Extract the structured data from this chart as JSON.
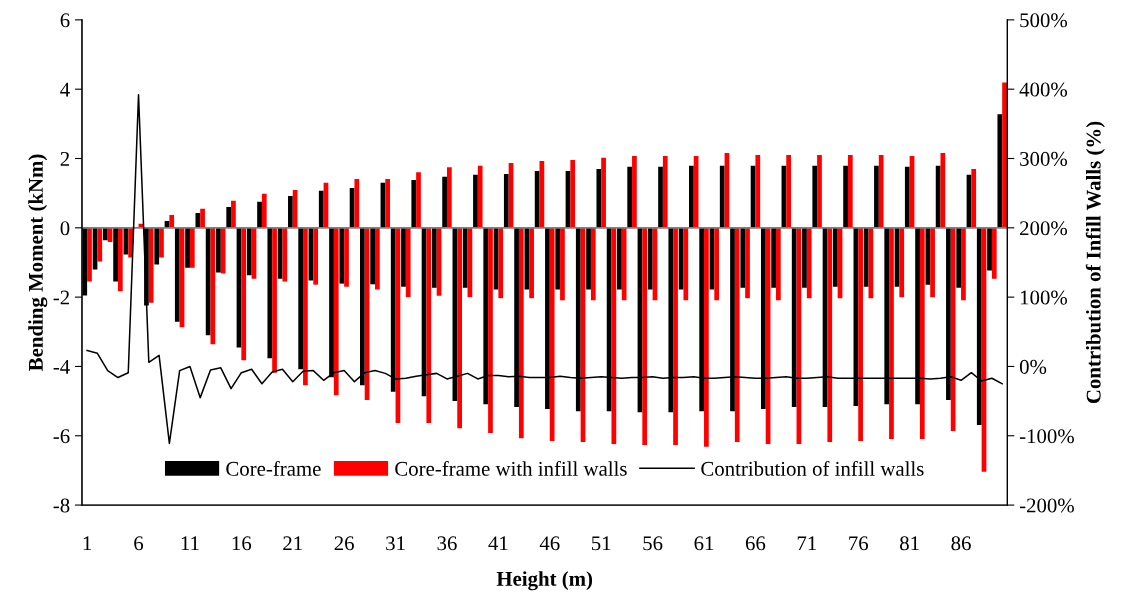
{
  "chart_data": {
    "type": "bar",
    "xlabel": "Height (m)",
    "ylabel": "Bending Moment (kNm)",
    "y2label": "Contribution of Infill Walls (%)",
    "categories": [
      "1",
      null,
      null,
      null,
      null,
      "6",
      null,
      null,
      null,
      null,
      "11",
      null,
      null,
      null,
      null,
      "16",
      null,
      null,
      null,
      null,
      "21",
      null,
      null,
      null,
      null,
      "26",
      null,
      null,
      null,
      null,
      "31",
      null,
      null,
      null,
      null,
      "36",
      null,
      null,
      null,
      null,
      "41",
      null,
      null,
      null,
      null,
      "46",
      null,
      null,
      null,
      null,
      "51",
      null,
      null,
      null,
      null,
      "56",
      null,
      null,
      null,
      null,
      "61",
      null,
      null,
      null,
      null,
      "66",
      null,
      null,
      null,
      null,
      "71",
      null,
      null,
      null,
      null,
      "76",
      null,
      null,
      null,
      null,
      "81",
      null,
      null,
      null,
      null,
      "86",
      null,
      null,
      null,
      null
    ],
    "series": [
      {
        "name": "Core-frame",
        "color": "#000000",
        "values": [
          -1.95,
          -1.2,
          -0.36,
          -1.55,
          -0.77,
          0,
          -2.24,
          -1.06,
          0.2,
          -2.71,
          -1.15,
          0.43,
          -3.1,
          -1.29,
          0.6,
          -3.45,
          -1.37,
          0.75,
          -3.76,
          -1.47,
          0.92,
          -4.08,
          -1.52,
          1.07,
          -4.31,
          -1.61,
          1.15,
          -4.54,
          -1.63,
          1.3,
          -4.73,
          -1.7,
          1.38,
          -4.86,
          -1.73,
          1.47,
          -5.0,
          -1.73,
          1.53,
          -5.09,
          -1.78,
          1.55,
          -5.17,
          -1.78,
          1.64,
          -5.23,
          -1.78,
          1.64,
          -5.29,
          -1.78,
          1.7,
          -5.29,
          -1.78,
          1.76,
          -5.32,
          -1.78,
          1.76,
          -5.32,
          -1.78,
          1.79,
          -5.29,
          -1.78,
          1.79,
          -5.29,
          -1.73,
          1.79,
          -5.23,
          -1.73,
          1.79,
          -5.17,
          -1.73,
          1.79,
          -5.17,
          -1.7,
          1.79,
          -5.14,
          -1.7,
          1.79,
          -5.09,
          -1.7,
          1.76,
          -5.09,
          -1.64,
          1.79,
          -4.97,
          -1.73,
          1.53,
          -5.69,
          -1.23,
          3.28
        ]
      },
      {
        "name": "Core-frame with infill walls",
        "color": "#ff0000",
        "values": [
          -1.55,
          -0.97,
          -0.41,
          -1.83,
          -0.86,
          0.12,
          -2.16,
          -0.86,
          0.37,
          -2.87,
          -1.15,
          0.55,
          -3.36,
          -1.32,
          0.78,
          -3.82,
          -1.47,
          0.98,
          -4.18,
          -1.55,
          1.09,
          -4.54,
          -1.64,
          1.3,
          -4.83,
          -1.7,
          1.41,
          -4.97,
          -1.78,
          1.41,
          -5.63,
          -2.0,
          1.6,
          -5.63,
          -1.96,
          1.75,
          -5.78,
          -2.0,
          1.79,
          -5.92,
          -2.03,
          1.87,
          -6.07,
          -2.03,
          1.93,
          -6.15,
          -2.09,
          1.96,
          -6.18,
          -2.09,
          2.02,
          -6.24,
          -2.09,
          2.07,
          -6.27,
          -2.09,
          2.07,
          -6.27,
          -2.09,
          2.07,
          -6.32,
          -2.09,
          2.16,
          -6.18,
          -2.03,
          2.1,
          -6.24,
          -2.09,
          2.1,
          -6.24,
          -2.03,
          2.1,
          -6.18,
          -2.03,
          2.1,
          -6.15,
          -2.03,
          2.1,
          -6.09,
          -2.0,
          2.07,
          -6.09,
          -2.0,
          2.16,
          -5.86,
          -2.09,
          1.7,
          -7.04,
          -1.47,
          4.19
        ]
      },
      {
        "name": "Contribution of infill walls",
        "type": "line",
        "axis": "y2",
        "color": "#000000",
        "values": [
          23,
          19,
          -6,
          -16,
          -9,
          392,
          6,
          16,
          -111,
          -6,
          0,
          -45,
          -5,
          -2,
          -32,
          -9,
          -4,
          -25,
          -8,
          -4,
          -22,
          -7,
          -6,
          -20,
          -9,
          -6,
          -22,
          -9,
          -6,
          -10,
          -18,
          -17,
          -14,
          -12,
          -10,
          -18,
          -14,
          -10,
          -18,
          -13,
          -13,
          -15,
          -14,
          -16,
          -16,
          -16,
          -14,
          -16,
          -17,
          -16,
          -15,
          -16,
          -17,
          -16,
          -16,
          -15,
          -17,
          -16,
          -16,
          -15,
          -17,
          -17,
          -16,
          -15,
          -16,
          -17,
          -17,
          -16,
          -15,
          -17,
          -17,
          -16,
          -15,
          -17,
          -17,
          -17,
          -17,
          -17,
          -17,
          -17,
          -17,
          -17,
          -18,
          -17,
          -15,
          -20,
          -9,
          -21,
          -17,
          -25
        ]
      }
    ],
    "ylim": [
      -8,
      6
    ],
    "yticks": [
      -8,
      -6,
      -4,
      -2,
      0,
      2,
      4,
      6
    ],
    "y2lim": [
      -200,
      500
    ],
    "y2ticks": [
      {
        "value": -200,
        "label": "-200%"
      },
      {
        "value": -100,
        "label": "-100%"
      },
      {
        "value": 0,
        "label": "0%"
      },
      {
        "value": 100,
        "label": "100%"
      },
      {
        "value": 200,
        "label": "200%"
      },
      {
        "value": 300,
        "label": "300%"
      },
      {
        "value": 400,
        "label": "400%"
      },
      {
        "value": 500,
        "label": "500%"
      }
    ],
    "ref_lines": [
      {
        "axis": "y",
        "value": 0,
        "color": "#808080"
      }
    ],
    "legend": "bottom",
    "grid": false
  }
}
